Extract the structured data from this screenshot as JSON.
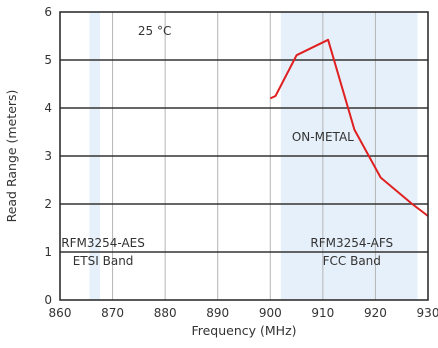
{
  "chart_data": {
    "type": "line",
    "xlabel": "Frequency (MHz)",
    "ylabel": "Read Range (meters)",
    "xlim": [
      860,
      930
    ],
    "ylim": [
      0,
      6
    ],
    "x_ticks": [
      "860",
      "870",
      "880",
      "890",
      "900",
      "910",
      "920",
      "930"
    ],
    "y_ticks": [
      "0",
      "1",
      "2",
      "3",
      "4",
      "5",
      "6"
    ],
    "x_tick_values": [
      860,
      870,
      880,
      890,
      900,
      910,
      920,
      930
    ],
    "y_tick_values": [
      0,
      1,
      2,
      3,
      4,
      5,
      6
    ],
    "grid": true,
    "bands": [
      {
        "from": 865.6,
        "to": 867.6,
        "label_line1": "RFM3254-AES",
        "label_line2": "ETSI Band"
      },
      {
        "from": 902,
        "to": 928,
        "label_line1": "RFM3254-AFS",
        "label_line2": "FCC Band"
      }
    ],
    "series": [
      {
        "x": [
          900,
          901,
          905,
          911,
          916,
          921,
          927,
          930
        ],
        "y": [
          4.2,
          4.25,
          5.1,
          5.42,
          3.55,
          2.55,
          2.0,
          1.75
        ]
      }
    ],
    "annotations": [
      {
        "text": "25 °C",
        "x": 878,
        "y": 5.6
      },
      {
        "text": "ON-METAL",
        "x": 910,
        "y": 3.4
      }
    ],
    "colors": {
      "line": "#e02020",
      "band": "#e6f0fa",
      "grid": "#b5b5b5",
      "axis": "#222222"
    }
  }
}
